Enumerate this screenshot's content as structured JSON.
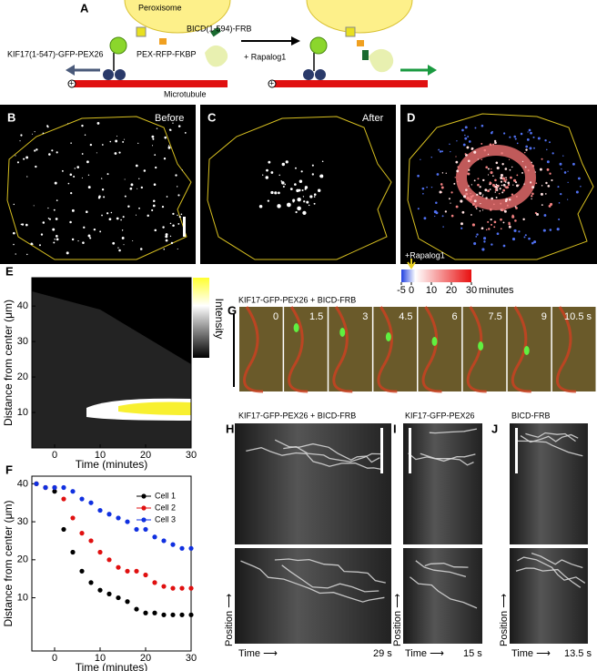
{
  "panel_a": {
    "label": "A",
    "peroxisome": "Peroxisome",
    "bicd": "BICD(1-594)-FRB",
    "kif17": "KIF17(1-547)-GFP-PEX26",
    "pex": "PEX-RFP-FKBP",
    "rapalog": "+ Rapalog1",
    "microtubule": "Microtubule",
    "plus_end": "+"
  },
  "panel_b": {
    "label": "B",
    "caption": "Before"
  },
  "panel_c": {
    "label": "C",
    "caption": "After"
  },
  "panel_d": {
    "label": "D",
    "marker": "+Rapalog1",
    "lim": [
      -5,
      30
    ],
    "ticks": [
      -5,
      0,
      10,
      20,
      30
    ],
    "unit": "minutes"
  },
  "chart_data": [
    {
      "type": "heatmap",
      "panel_label": "E",
      "xlabel": "Time (minutes)",
      "ylabel": "Distance from center (μm)",
      "colorbar_label": "Intensity",
      "xlim": [
        -5,
        30
      ],
      "xticks": [
        0,
        10,
        20,
        30
      ],
      "ylim": [
        0,
        48
      ],
      "yticks": [
        10,
        20,
        30,
        40
      ]
    },
    {
      "type": "scatter",
      "panel_label": "F",
      "xlabel": "Time (minutes)",
      "ylabel": "Distance from center (μm)",
      "xlim": [
        -5,
        30
      ],
      "xticks": [
        0,
        10,
        20,
        30
      ],
      "ylim": [
        -4,
        42
      ],
      "yticks": [
        10,
        20,
        30,
        40
      ],
      "x": [
        -4,
        -2,
        0,
        2,
        4,
        6,
        8,
        10,
        12,
        14,
        16,
        18,
        20,
        22,
        24,
        26,
        28,
        30
      ],
      "series": [
        {
          "name": "Cell 1",
          "color": "#000000",
          "values": [
            40,
            39,
            38,
            28,
            22,
            17,
            14,
            12,
            11,
            10,
            9,
            7,
            6,
            6,
            5.5,
            5.5,
            5.5,
            5.5
          ]
        },
        {
          "name": "Cell 2",
          "color": "#e01010",
          "values": [
            40,
            39,
            39,
            36,
            31,
            27,
            25,
            22,
            20,
            18,
            17,
            17,
            16,
            14,
            13,
            12.5,
            12.5,
            12.5
          ]
        },
        {
          "name": "Cell 3",
          "color": "#1030e0",
          "values": [
            40,
            39,
            39,
            39,
            38,
            36,
            35,
            33,
            32,
            31,
            30,
            28,
            28,
            26,
            25,
            24,
            23,
            23
          ]
        }
      ]
    }
  ],
  "panel_g": {
    "label": "G",
    "title": "KIF17-GFP-PEX26 + BICD-FRB",
    "frames": [
      "0",
      "1.5",
      "3",
      "4.5",
      "6",
      "7.5",
      "9",
      "10.5 s"
    ]
  },
  "panel_h": {
    "label": "H",
    "title": "KIF17-GFP-PEX26 + BICD-FRB",
    "time_axis": "Time ⟶",
    "position_axis": "Position ⟶",
    "duration": "29 s"
  },
  "panel_i": {
    "label": "I",
    "title": "KIF17-GFP-PEX26",
    "time_axis": "Time ⟶",
    "position_axis": "Position ⟶",
    "duration": "15 s"
  },
  "panel_j": {
    "label": "J",
    "title": "BICD-FRB",
    "time_axis": "Time ⟶",
    "position_axis": "Position ⟶",
    "duration": "13.5 s"
  }
}
